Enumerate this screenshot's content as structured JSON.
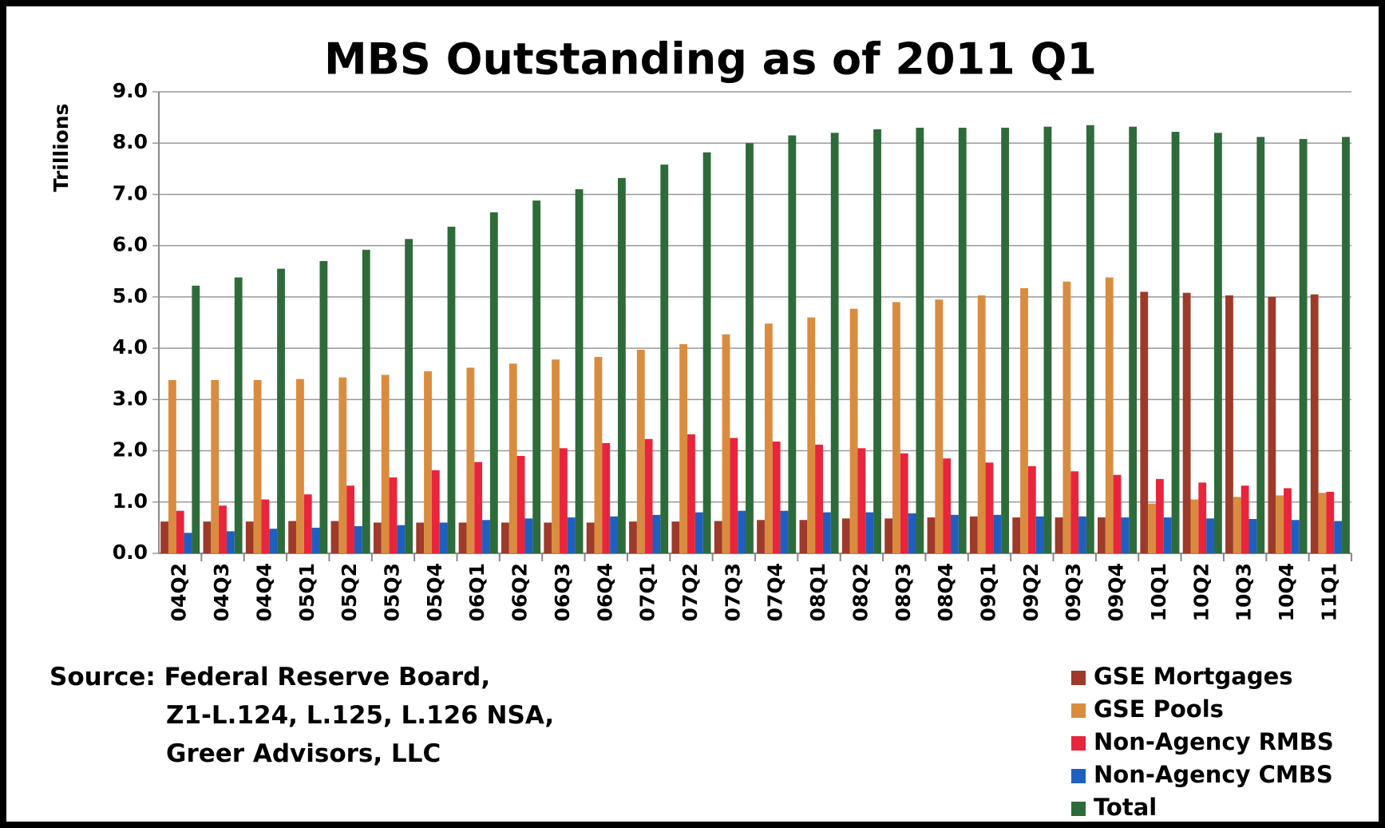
{
  "chart_data": {
    "type": "bar",
    "title": "MBS Outstanding as of 2011 Q1",
    "y_label": "Trillions",
    "categories": [
      "04Q2",
      "04Q3",
      "04Q4",
      "05Q1",
      "05Q2",
      "05Q3",
      "05Q4",
      "06Q1",
      "06Q2",
      "06Q3",
      "06Q4",
      "07Q1",
      "07Q2",
      "07Q3",
      "07Q4",
      "08Q1",
      "08Q2",
      "08Q3",
      "08Q4",
      "09Q1",
      "09Q2",
      "09Q3",
      "09Q4",
      "10Q1",
      "10Q2",
      "10Q3",
      "10Q4",
      "11Q1"
    ],
    "series": [
      {
        "name": "GSE Mortgages",
        "color": "#9e3a2a",
        "values": [
          0.62,
          0.62,
          0.62,
          0.63,
          0.63,
          0.6,
          0.6,
          0.6,
          0.6,
          0.6,
          0.6,
          0.62,
          0.62,
          0.63,
          0.65,
          0.65,
          0.68,
          0.68,
          0.7,
          0.72,
          0.7,
          0.7,
          0.7,
          5.1,
          5.08,
          5.03,
          5.0,
          5.05
        ]
      },
      {
        "name": "GSE Pools",
        "color": "#d98c3f",
        "values": [
          3.38,
          3.38,
          3.38,
          3.4,
          3.43,
          3.48,
          3.55,
          3.62,
          3.7,
          3.78,
          3.83,
          3.97,
          4.08,
          4.27,
          4.48,
          4.6,
          4.77,
          4.9,
          4.95,
          5.03,
          5.17,
          5.3,
          5.38,
          0.97,
          1.05,
          1.1,
          1.13,
          1.18
        ]
      },
      {
        "name": "Non-Agency RMBS",
        "color": "#e8253c",
        "values": [
          0.83,
          0.93,
          1.05,
          1.15,
          1.32,
          1.48,
          1.62,
          1.78,
          1.9,
          2.05,
          2.15,
          2.23,
          2.32,
          2.25,
          2.18,
          2.12,
          2.05,
          1.95,
          1.85,
          1.77,
          1.7,
          1.6,
          1.53,
          1.45,
          1.38,
          1.32,
          1.27,
          1.2
        ]
      },
      {
        "name": "Non-Agency CMBS",
        "color": "#1f5fbf",
        "values": [
          0.4,
          0.43,
          0.48,
          0.5,
          0.53,
          0.55,
          0.6,
          0.65,
          0.68,
          0.7,
          0.72,
          0.75,
          0.8,
          0.83,
          0.83,
          0.8,
          0.8,
          0.78,
          0.75,
          0.75,
          0.72,
          0.72,
          0.7,
          0.7,
          0.68,
          0.67,
          0.65,
          0.63
        ]
      },
      {
        "name": "Total",
        "color": "#2e6b3a",
        "values": [
          5.22,
          5.38,
          5.55,
          5.7,
          5.92,
          6.13,
          6.37,
          6.65,
          6.88,
          7.1,
          7.32,
          7.58,
          7.82,
          8.0,
          8.15,
          8.2,
          8.27,
          8.3,
          8.3,
          8.3,
          8.32,
          8.35,
          8.32,
          8.22,
          8.2,
          8.12,
          8.08,
          8.12
        ]
      }
    ],
    "ylim": [
      0,
      9
    ],
    "yticks": [
      {
        "value": 0,
        "label": "0.0"
      },
      {
        "value": 1,
        "label": "1.0"
      },
      {
        "value": 2,
        "label": "2.0"
      },
      {
        "value": 3,
        "label": "3.0"
      },
      {
        "value": 4,
        "label": "4.0"
      },
      {
        "value": 5,
        "label": "5.0"
      },
      {
        "value": 6,
        "label": "6.0"
      },
      {
        "value": 7,
        "label": "7.0"
      },
      {
        "value": 8,
        "label": "8.0"
      },
      {
        "value": 9,
        "label": "9.0"
      }
    ],
    "grid": true,
    "source": [
      "Source: Federal Reserve Board,",
      "Z1-L.124, L.125, L.126 NSA,",
      "Greer Advisors, LLC"
    ]
  }
}
